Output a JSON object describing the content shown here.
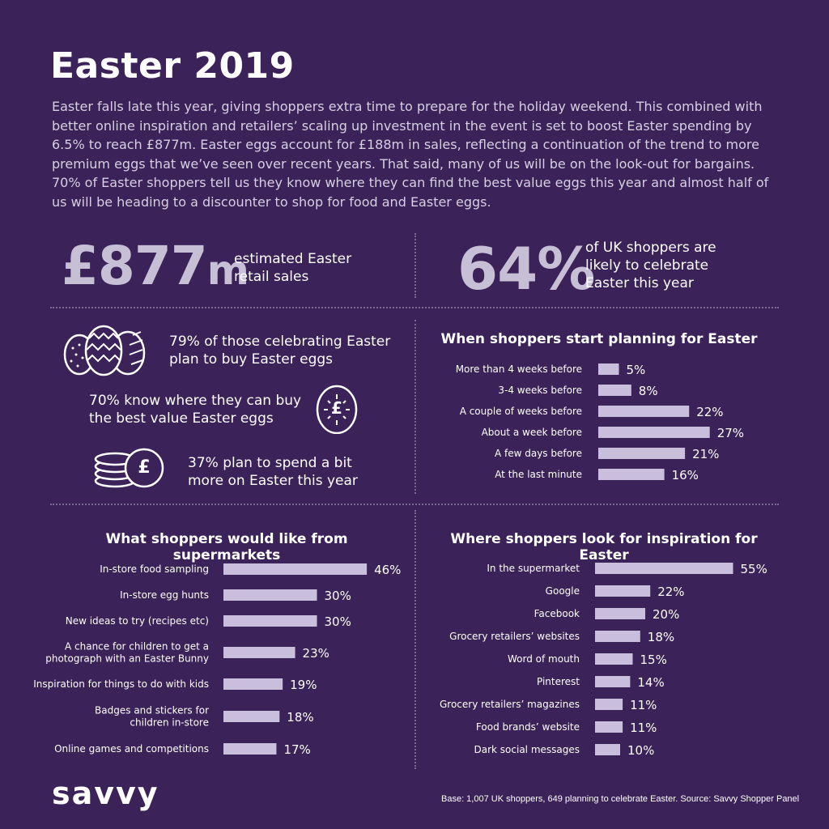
{
  "title": "Easter 2019",
  "intro": "Easter falls late this year, giving shoppers extra time to prepare for the holiday weekend. This combined with better online inspiration and retailers’ scaling up investment in the event is set to boost Easter spending by 6.5% to reach £877m. Easter eggs account for £188m in sales, reflecting a continuation of the trend to more premium eggs that we’ve seen over recent years. That said, many of us will be on the look-out for bargains. 70% of Easter shoppers tell us they know where they can find the best value eggs this year and almost half of us will be heading to a discounter to shop for food and Easter eggs.",
  "stats": {
    "sales_value": "£877",
    "sales_unit": "m",
    "sales_label_1": "estimated Easter",
    "sales_label_2": "retail sales",
    "celebrate_value": "64%",
    "celebrate_label_1": "of UK shoppers are",
    "celebrate_label_2": "likely to celebrate",
    "celebrate_label_3": "Easter this year"
  },
  "facts": {
    "eggs_1": "79% of those celebrating Easter",
    "eggs_2": "plan to buy Easter eggs",
    "value_1": "70% know where they can buy",
    "value_2": "the best value Easter eggs",
    "spend_1": "37% plan to spend a bit",
    "spend_2": "more on Easter this year"
  },
  "icons": {
    "eggs": "three-easter-eggs-icon",
    "value_egg": "egg-with-pound-icon",
    "coins": "coins-pound-icon",
    "pound_symbol": "£"
  },
  "colors": {
    "background": "#3b2258",
    "bar": "#c9bfdc",
    "stat": "#c7bfd6"
  },
  "chart_data": [
    {
      "type": "bar",
      "orientation": "horizontal",
      "title": "When shoppers start planning for Easter",
      "categories": [
        "More than 4 weeks before",
        "3-4 weeks before",
        "A couple of weeks before",
        "About a week before",
        "A few days before",
        "At the last minute"
      ],
      "values": [
        5,
        8,
        22,
        27,
        21,
        16
      ],
      "value_labels": [
        "5%",
        "8%",
        "22%",
        "27%",
        "21%",
        "16%"
      ],
      "unit": "%"
    },
    {
      "type": "bar",
      "orientation": "horizontal",
      "title": "What shoppers would like from supermarkets",
      "categories": [
        [
          "In-store food sampling"
        ],
        [
          "In-store egg hunts"
        ],
        [
          "New ideas to try (recipes etc)"
        ],
        [
          "A chance for children to get a",
          "photograph with an Easter Bunny"
        ],
        [
          "Inspiration for things to do with kids"
        ],
        [
          "Badges and stickers for",
          "children in-store"
        ],
        [
          "Online games and competitions"
        ]
      ],
      "values": [
        46,
        30,
        30,
        23,
        19,
        18,
        17
      ],
      "value_labels": [
        "46%",
        "30%",
        "30%",
        "23%",
        "19%",
        "18%",
        "17%"
      ],
      "unit": "%"
    },
    {
      "type": "bar",
      "orientation": "horizontal",
      "title": "Where shoppers look for inspiration for Easter",
      "categories": [
        "In the supermarket",
        "Google",
        "Facebook",
        "Grocery retailers’ websites",
        "Word of mouth",
        "Pinterest",
        "Grocery retailers’ magazines",
        "Food brands’ website",
        "Dark social messages"
      ],
      "values": [
        55,
        22,
        20,
        18,
        15,
        14,
        11,
        11,
        10
      ],
      "value_labels": [
        "55%",
        "22%",
        "20%",
        "18%",
        "15%",
        "14%",
        "11%",
        "11%",
        "10%"
      ],
      "unit": "%"
    }
  ],
  "logo": "savvy",
  "footnote": "Base: 1,007 UK shoppers, 649 planning to celebrate Easter. Source: Savvy Shopper Panel"
}
